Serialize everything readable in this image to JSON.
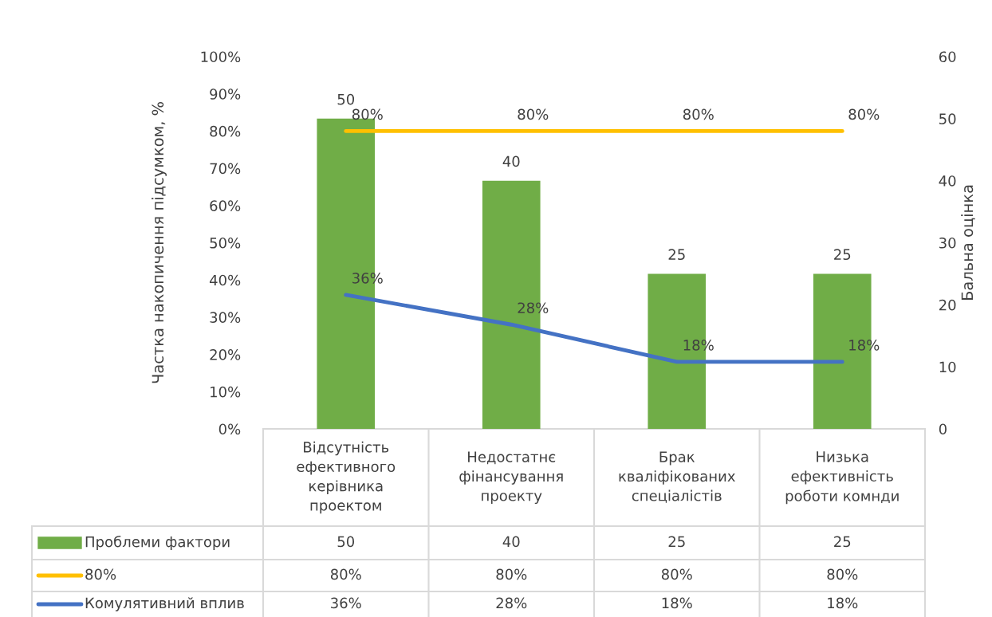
{
  "chart_data": {
    "type": "bar",
    "categories": [
      "Відсутність\nефективного\nкерівника\nпроектом",
      "Недостатнє\nфінансування\nпроекту",
      "Брак\nкваліфікованих\nспеціалістів",
      "Низька\nефективність\nроботи комнди"
    ],
    "ylabel": "Частка накопичення підсумком, %",
    "y2label": "Бальна оцінка",
    "ylim": [
      0,
      100
    ],
    "yticks": [
      {
        "value": 0,
        "label": "0%"
      },
      {
        "value": 10,
        "label": "10%"
      },
      {
        "value": 20,
        "label": "20%"
      },
      {
        "value": 30,
        "label": "30%"
      },
      {
        "value": 40,
        "label": "40%"
      },
      {
        "value": 50,
        "label": "50%"
      },
      {
        "value": 60,
        "label": "60%"
      },
      {
        "value": 70,
        "label": "70%"
      },
      {
        "value": 80,
        "label": "80%"
      },
      {
        "value": 90,
        "label": "90%"
      },
      {
        "value": 100,
        "label": "100%"
      }
    ],
    "y2lim": [
      0,
      60
    ],
    "y2ticks": [
      0,
      10,
      20,
      30,
      40,
      50,
      60
    ],
    "series": [
      {
        "name": "Проблеми фактори",
        "axis": "y2",
        "color": "#70ad47",
        "values": [
          50,
          40,
          25,
          25
        ],
        "value_labels": [
          "50",
          "40",
          "25",
          "25"
        ]
      },
      {
        "name": "80%",
        "type": "line",
        "axis": "y",
        "color": "#ffc000",
        "values": [
          80,
          80,
          80,
          80
        ],
        "value_labels": [
          "80%",
          "80%",
          "80%",
          "80%"
        ]
      },
      {
        "name": "Комулятивний вплив",
        "type": "line",
        "axis": "y",
        "color": "#4472c4",
        "values": [
          36,
          28,
          18,
          18
        ],
        "value_labels": [
          "36%",
          "28%",
          "18%",
          "18%"
        ]
      }
    ],
    "data_labels": true,
    "grid": false,
    "legend": "bottom"
  }
}
